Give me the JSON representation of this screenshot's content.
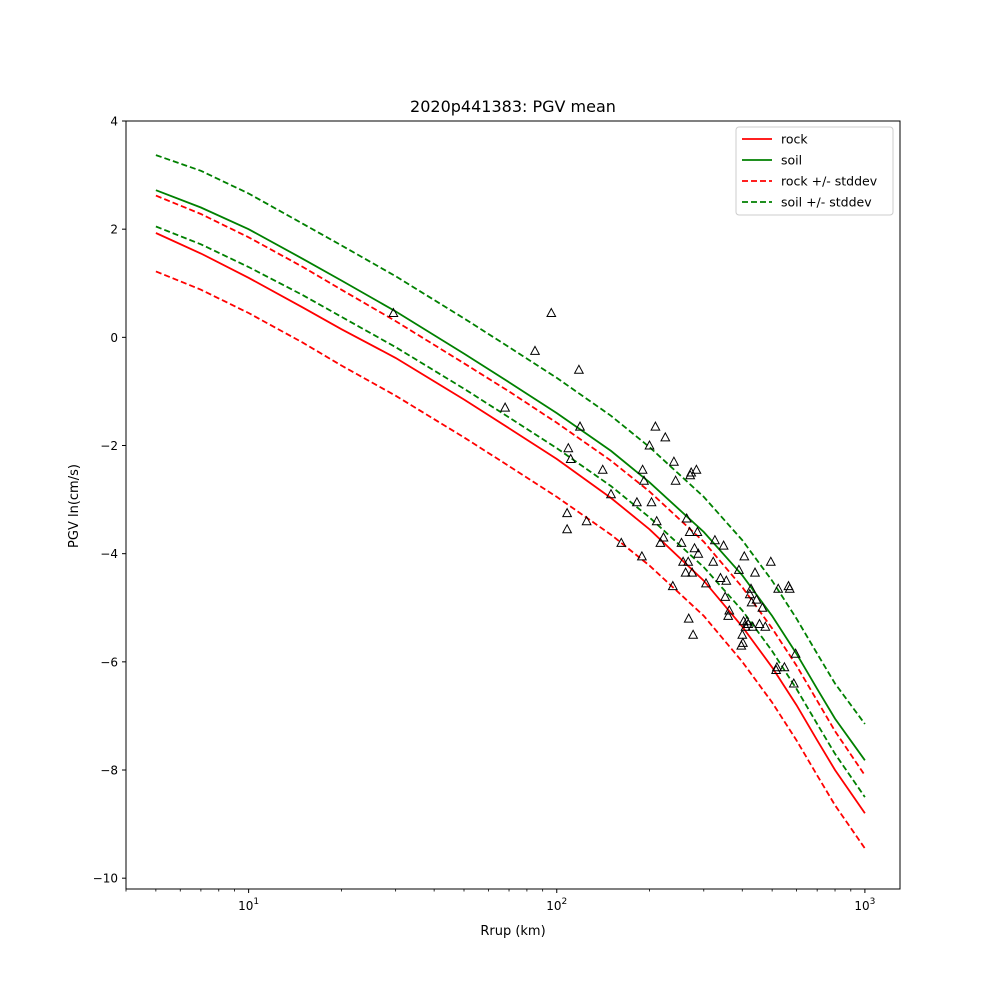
{
  "chart_data": {
    "type": "scatter",
    "title": "2020p441383: PGV mean",
    "xlabel": "Rrup (km)",
    "ylabel": "PGV ln(cm/s)",
    "x_scale": "log",
    "xlim": [
      4,
      1300
    ],
    "ylim": [
      -10.2,
      4
    ],
    "x_ticks": [
      {
        "value": 10,
        "base": "10",
        "exp": "1"
      },
      {
        "value": 100,
        "base": "10",
        "exp": "2"
      },
      {
        "value": 1000,
        "base": "10",
        "exp": "3"
      }
    ],
    "y_ticks": [
      {
        "value": 4,
        "label": "4"
      },
      {
        "value": 2,
        "label": "2"
      },
      {
        "value": 0,
        "label": "0"
      },
      {
        "value": -2,
        "label": "−2"
      },
      {
        "value": -4,
        "label": "−4"
      },
      {
        "value": -6,
        "label": "−6"
      },
      {
        "value": -8,
        "label": "−8"
      },
      {
        "value": -10,
        "label": "−10"
      }
    ],
    "grid": false,
    "legend_position": "top-right",
    "series": [
      {
        "name": "rock",
        "color": "#ff0000",
        "style": "solid",
        "x": [
          5,
          7,
          10,
          15,
          20,
          30,
          50,
          70,
          100,
          150,
          200,
          300,
          400,
          500,
          600,
          700,
          800,
          1000
        ],
        "y": [
          1.93,
          1.55,
          1.1,
          0.55,
          0.15,
          -0.38,
          -1.15,
          -1.68,
          -2.25,
          -2.97,
          -3.55,
          -4.5,
          -5.35,
          -6.1,
          -6.8,
          -7.45,
          -8.0,
          -8.8
        ]
      },
      {
        "name": "soil",
        "color": "#008000",
        "style": "solid",
        "x": [
          5,
          7,
          10,
          15,
          20,
          30,
          50,
          70,
          100,
          150,
          200,
          300,
          400,
          500,
          600,
          700,
          800,
          1000
        ],
        "y": [
          2.72,
          2.4,
          2.0,
          1.45,
          1.05,
          0.48,
          -0.3,
          -0.83,
          -1.4,
          -2.1,
          -2.68,
          -3.6,
          -4.4,
          -5.15,
          -5.85,
          -6.5,
          -7.05,
          -7.82
        ]
      },
      {
        "name": "rock +/- stddev",
        "color": "#ff0000",
        "style": "dashed",
        "x": [
          5,
          7,
          10,
          15,
          20,
          30,
          50,
          70,
          100,
          150,
          200,
          300,
          400,
          500,
          600,
          700,
          800,
          1000
        ],
        "y": [
          2.62,
          2.28,
          1.85,
          1.3,
          0.88,
          0.3,
          -0.48,
          -1.0,
          -1.58,
          -2.28,
          -2.85,
          -3.78,
          -4.62,
          -5.38,
          -6.07,
          -6.72,
          -7.28,
          -8.1
        ]
      },
      {
        "name": "rock +/- stddev (lower)",
        "color": "#ff0000",
        "style": "dashed",
        "x": [
          5,
          7,
          10,
          15,
          20,
          30,
          50,
          70,
          100,
          150,
          200,
          300,
          400,
          500,
          600,
          700,
          800,
          1000
        ],
        "y": [
          1.22,
          0.88,
          0.45,
          -0.1,
          -0.52,
          -1.08,
          -1.85,
          -2.38,
          -2.95,
          -3.65,
          -4.22,
          -5.15,
          -6.0,
          -6.75,
          -7.45,
          -8.1,
          -8.65,
          -9.45
        ]
      },
      {
        "name": "soil +/- stddev",
        "color": "#008000",
        "style": "dashed",
        "x": [
          5,
          7,
          10,
          15,
          20,
          30,
          50,
          70,
          100,
          150,
          200,
          300,
          400,
          500,
          600,
          700,
          800,
          1000
        ],
        "y": [
          3.37,
          3.08,
          2.66,
          2.1,
          1.7,
          1.13,
          0.35,
          -0.18,
          -0.75,
          -1.45,
          -2.03,
          -2.95,
          -3.75,
          -4.5,
          -5.2,
          -5.85,
          -6.4,
          -7.15
        ]
      },
      {
        "name": "soil +/- stddev (lower)",
        "color": "#008000",
        "style": "dashed",
        "x": [
          5,
          7,
          10,
          15,
          20,
          30,
          50,
          70,
          100,
          150,
          200,
          300,
          400,
          500,
          600,
          700,
          800,
          1000
        ],
        "y": [
          2.05,
          1.72,
          1.3,
          0.78,
          0.38,
          -0.18,
          -0.95,
          -1.48,
          -2.05,
          -2.75,
          -3.33,
          -4.25,
          -5.05,
          -5.8,
          -6.5,
          -7.15,
          -7.7,
          -8.5
        ]
      }
    ],
    "legend": [
      {
        "label": "rock",
        "color": "#ff0000",
        "style": "solid"
      },
      {
        "label": "soil",
        "color": "#008000",
        "style": "solid"
      },
      {
        "label": "rock +/- stddev",
        "color": "#ff0000",
        "style": "dashed"
      },
      {
        "label": "soil +/- stddev",
        "color": "#008000",
        "style": "dashed"
      }
    ],
    "observations": {
      "marker": "triangle",
      "points": [
        [
          29.5,
          0.45
        ],
        [
          68,
          -1.3
        ],
        [
          85,
          -0.25
        ],
        [
          96,
          0.45
        ],
        [
          108,
          -3.55
        ],
        [
          108,
          -3.25
        ],
        [
          109,
          -2.05
        ],
        [
          111,
          -2.25
        ],
        [
          118,
          -0.6
        ],
        [
          119,
          -1.65
        ],
        [
          125,
          -3.4
        ],
        [
          141,
          -2.45
        ],
        [
          150,
          -2.9
        ],
        [
          162,
          -3.8
        ],
        [
          182,
          -3.05
        ],
        [
          189,
          -4.05
        ],
        [
          190,
          -2.45
        ],
        [
          192,
          -2.65
        ],
        [
          200,
          -2.0
        ],
        [
          203,
          -3.05
        ],
        [
          209,
          -1.65
        ],
        [
          211,
          -3.4
        ],
        [
          217,
          -3.8
        ],
        [
          222,
          -3.7
        ],
        [
          225,
          -1.85
        ],
        [
          238,
          -4.6
        ],
        [
          240,
          -2.3
        ],
        [
          243,
          -2.65
        ],
        [
          254,
          -3.8
        ],
        [
          257,
          -4.15
        ],
        [
          262,
          -4.35
        ],
        [
          264,
          -3.35
        ],
        [
          267,
          -4.15
        ],
        [
          268,
          -5.2
        ],
        [
          270,
          -3.6
        ],
        [
          271,
          -2.55
        ],
        [
          273,
          -2.5
        ],
        [
          275,
          -4.35
        ],
        [
          277,
          -5.5
        ],
        [
          280,
          -3.9
        ],
        [
          284,
          -2.45
        ],
        [
          286,
          -3.6
        ],
        [
          288,
          -4.0
        ],
        [
          305,
          -4.55
        ],
        [
          322,
          -4.15
        ],
        [
          326,
          -3.75
        ],
        [
          340,
          -4.45
        ],
        [
          348,
          -3.85
        ],
        [
          352,
          -4.8
        ],
        [
          355,
          -4.5
        ],
        [
          360,
          -5.15
        ],
        [
          363,
          -5.05
        ],
        [
          390,
          -4.3
        ],
        [
          397,
          -5.7
        ],
        [
          400,
          -5.5
        ],
        [
          402,
          -5.65
        ],
        [
          404,
          -5.25
        ],
        [
          406,
          -4.05
        ],
        [
          410,
          -5.35
        ],
        [
          414,
          -5.25
        ],
        [
          418,
          -5.3
        ],
        [
          423,
          -4.75
        ],
        [
          427,
          -4.65
        ],
        [
          429,
          -4.9
        ],
        [
          432,
          -5.35
        ],
        [
          440,
          -4.35
        ],
        [
          445,
          -4.85
        ],
        [
          455,
          -5.3
        ],
        [
          465,
          -5.0
        ],
        [
          475,
          -5.35
        ],
        [
          495,
          -4.15
        ],
        [
          515,
          -6.15
        ],
        [
          518,
          -6.1
        ],
        [
          523,
          -4.65
        ],
        [
          548,
          -6.1
        ],
        [
          565,
          -4.6
        ],
        [
          570,
          -4.65
        ],
        [
          588,
          -6.4
        ],
        [
          596,
          -5.85
        ]
      ]
    }
  }
}
